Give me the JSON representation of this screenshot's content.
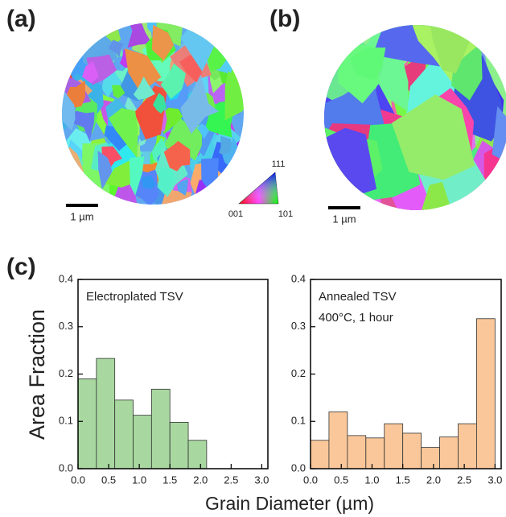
{
  "panels": {
    "a": "(a)",
    "b": "(b)",
    "c": "(c)"
  },
  "scale_bars": {
    "a": "1 µm",
    "b": "1 µm"
  },
  "ipf_key": {
    "corner_001": "001",
    "corner_101": "101",
    "corner_111": "111"
  },
  "figure": {
    "xlabel": "Grain Diameter (µm)",
    "ylabel": "Area Fraction"
  },
  "chart_data": [
    {
      "type": "histogram",
      "annotation": [
        "Electroplated TSV"
      ],
      "color": "#a8d8a0",
      "edgecolor": "#333333",
      "bins": [
        0,
        0.3,
        0.6,
        0.9,
        1.2,
        1.5,
        1.8,
        2.1
      ],
      "values": [
        0.19,
        0.233,
        0.145,
        0.113,
        0.168,
        0.098,
        0.06
      ],
      "xlim": [
        0,
        3.1
      ],
      "ylim": [
        0,
        0.4
      ],
      "xticks": [
        {
          "value": 0,
          "label": "0.0"
        },
        0.5,
        {
          "value": 1,
          "label": "1.0"
        },
        1.5,
        {
          "value": 2,
          "label": "2.0"
        },
        2.5,
        {
          "value": 3,
          "label": "3.0"
        }
      ],
      "yticks": [
        {
          "value": 0,
          "label": "0.0"
        },
        0.1,
        0.2,
        0.3,
        0.4
      ]
    },
    {
      "type": "histogram",
      "annotation": [
        "Annealed TSV",
        "400°C, 1 hour"
      ],
      "color": "#f9c79a",
      "edgecolor": "#333333",
      "bins": [
        0,
        0.3,
        0.6,
        0.9,
        1.2,
        1.5,
        1.8,
        2.1,
        2.4,
        2.7,
        3.0
      ],
      "values": [
        0.06,
        0.12,
        0.07,
        0.065,
        0.095,
        0.075,
        0.045,
        0.067,
        0.095,
        0.317
      ],
      "xlim": [
        0,
        3.1
      ],
      "ylim": [
        0,
        0.4
      ],
      "xticks": [
        {
          "value": 0,
          "label": "0.0"
        },
        0.5,
        {
          "value": 1,
          "label": "1.0"
        },
        1.5,
        {
          "value": 2,
          "label": "2.0"
        },
        2.5,
        {
          "value": 3,
          "label": "3.0"
        }
      ],
      "yticks": [
        {
          "value": 0,
          "label": "0.0"
        },
        0.1,
        0.2,
        0.3,
        0.4
      ]
    }
  ]
}
